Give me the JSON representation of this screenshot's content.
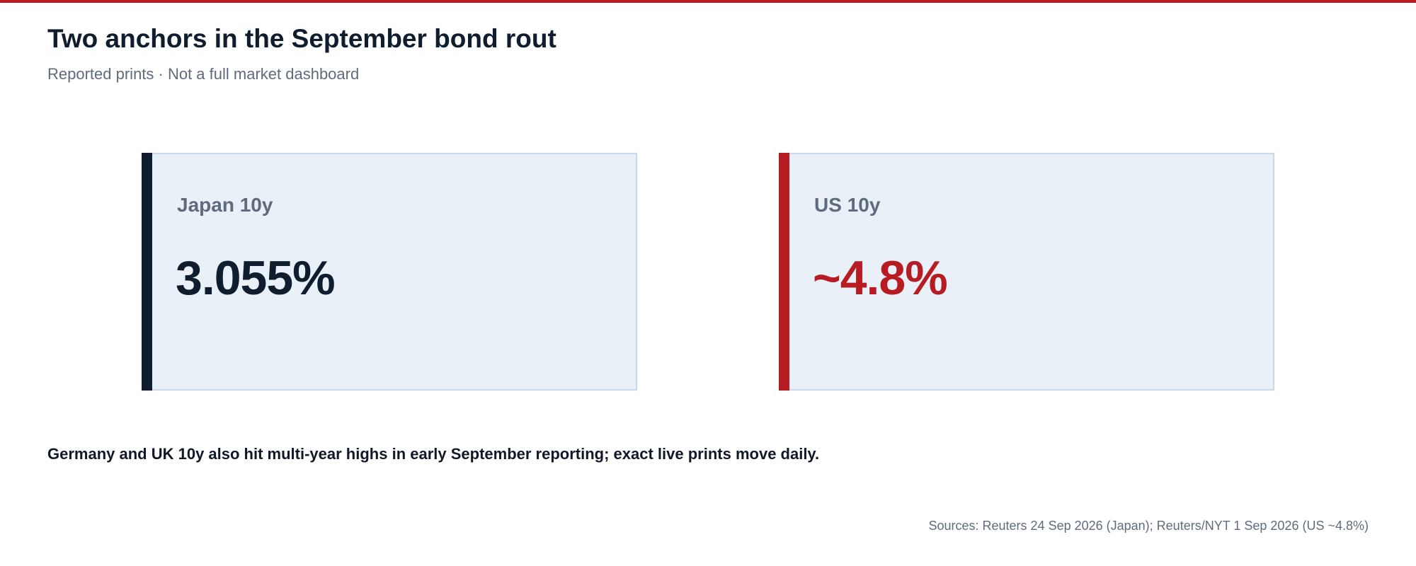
{
  "colors": {
    "accent_red": "#b71c23",
    "navy": "#0f1d2e",
    "card_background": "#e9f0f8",
    "card_border": "#c5d8ea",
    "muted_text": "#5f6b7d"
  },
  "header": {
    "title": "Two anchors in the September bond rout",
    "subtitle": "Reported prints · Not a full market dashboard"
  },
  "chart_data": {
    "type": "table",
    "title": "Two anchors in the September bond rout",
    "subtitle": "Reported prints · Not a full market dashboard",
    "cards": [
      {
        "label": "Japan 10y",
        "display": "3.055%",
        "value": 3.055,
        "unit": "%",
        "accent": "#0f1d2e",
        "value_color": "#0f1d2e"
      },
      {
        "label": "US 10y",
        "display": "~4.8%",
        "value": 4.8,
        "unit": "%",
        "approximate": true,
        "accent": "#b71c23",
        "value_color": "#b71c23"
      }
    ],
    "note": "Germany and UK 10y also hit multi-year highs in early September reporting; exact live prints move daily.",
    "sources": "Sources: Reuters 24 Sep 2026 (Japan); Reuters/NYT 1 Sep 2026 (US ~4.8%)"
  }
}
